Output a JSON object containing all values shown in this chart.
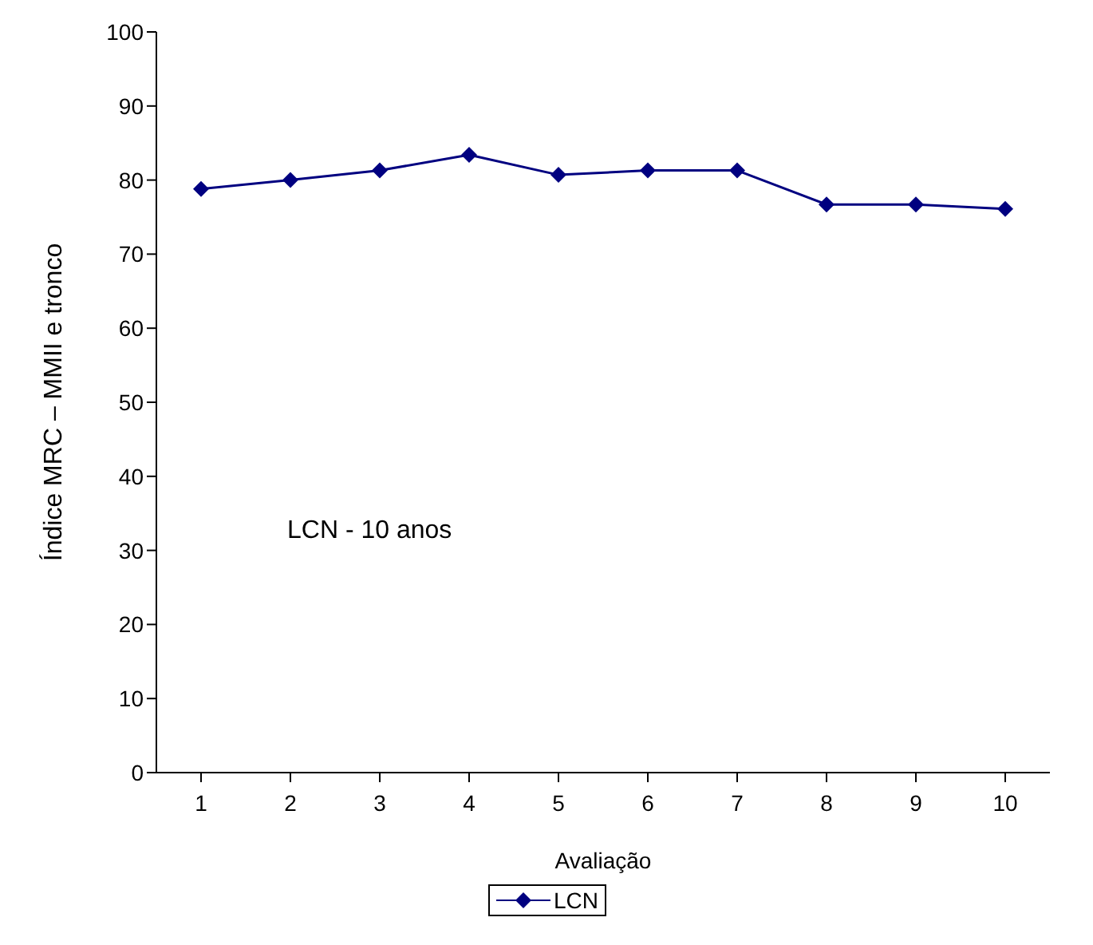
{
  "chart_data": {
    "type": "line",
    "xlabel": "Avaliação",
    "ylabel": "Índice MRC – MMII e tronco",
    "categories": [
      "1",
      "2",
      "3",
      "4",
      "5",
      "6",
      "7",
      "8",
      "9",
      "10"
    ],
    "series": [
      {
        "name": "LCN",
        "color": "#000080",
        "values": [
          78.8,
          80,
          81.3,
          83.4,
          80.7,
          81.3,
          81.3,
          76.7,
          76.7,
          76.1
        ]
      }
    ],
    "ylim": [
      0,
      100
    ],
    "yticks": [
      0,
      10,
      20,
      30,
      40,
      50,
      60,
      70,
      80,
      90,
      100
    ],
    "grid": false,
    "legend": "bottom",
    "marker": "diamond",
    "annotations": [
      "LCN - 10 anos"
    ]
  }
}
